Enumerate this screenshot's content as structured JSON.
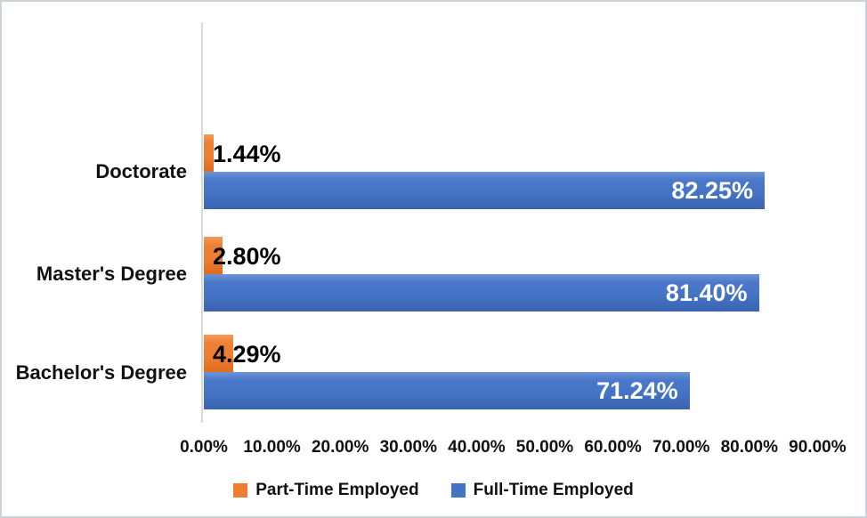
{
  "chart_data": {
    "type": "bar",
    "orientation": "horizontal",
    "title": "",
    "categories": [
      "Doctorate",
      "Master's Degree",
      "Bachelor's Degree"
    ],
    "series": [
      {
        "name": "Part-Time Employed",
        "color": "#ED7D31",
        "values": [
          1.44,
          2.8,
          4.29
        ],
        "labels": [
          "1.44%",
          "2.80%",
          "4.29%"
        ],
        "label_color": "#000000",
        "label_position": "outside-end"
      },
      {
        "name": "Full-Time Employed",
        "color": "#4472C4",
        "values": [
          82.25,
          81.4,
          71.24
        ],
        "labels": [
          "82.25%",
          "81.40%",
          "71.24%"
        ],
        "label_color": "#FFFFFF",
        "label_position": "inside-end"
      }
    ],
    "x_axis": {
      "min": 0,
      "max": 90,
      "step": 10,
      "ticks": [
        "0.00%",
        "10.00%",
        "20.00%",
        "30.00%",
        "40.00%",
        "50.00%",
        "60.00%",
        "70.00%",
        "80.00%",
        "90.00%"
      ]
    },
    "y_axis_line_color": "#D9D9D9",
    "grid": false,
    "legend": {
      "position": "bottom",
      "items": [
        "Part-Time Employed",
        "Full-Time Employed"
      ]
    }
  }
}
